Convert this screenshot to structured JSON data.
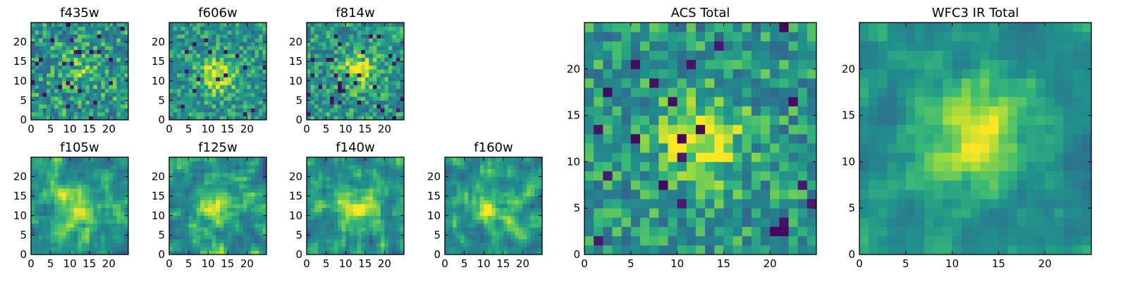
{
  "chart_data": [
    {
      "type": "heatmap",
      "title": "f435w",
      "xlim": [
        0,
        25
      ],
      "ylim": [
        0,
        25
      ],
      "xticks": [
        0,
        5,
        10,
        15,
        20
      ],
      "yticks": [
        0,
        5,
        10,
        15,
        20
      ],
      "seed": 11,
      "noise": 0.85,
      "smooth": 0,
      "peak": [
        12,
        13
      ],
      "peak_sigma": 3.5,
      "peak_amp": 0.35,
      "dark": 0.04,
      "colormap": "viridis"
    },
    {
      "type": "heatmap",
      "title": "f606w",
      "xlim": [
        0,
        25
      ],
      "ylim": [
        0,
        25
      ],
      "xticks": [
        0,
        5,
        10,
        15,
        20
      ],
      "yticks": [
        0,
        5,
        10,
        15,
        20
      ],
      "seed": 23,
      "noise": 0.7,
      "smooth": 0,
      "peak": [
        12,
        11
      ],
      "peak_sigma": 3.2,
      "peak_amp": 0.8,
      "dark": 0.03,
      "colormap": "viridis"
    },
    {
      "type": "heatmap",
      "title": "f814w",
      "xlim": [
        0,
        25
      ],
      "ylim": [
        0,
        25
      ],
      "xticks": [
        0,
        5,
        10,
        15,
        20
      ],
      "yticks": [
        0,
        5,
        10,
        15,
        20
      ],
      "seed": 37,
      "noise": 0.75,
      "smooth": 0,
      "peak": [
        13,
        12
      ],
      "peak_sigma": 3.0,
      "peak_amp": 0.8,
      "dark": 0.05,
      "colormap": "viridis"
    },
    {
      "type": "heatmap",
      "title": "f105w",
      "xlim": [
        0,
        25
      ],
      "ylim": [
        0,
        25
      ],
      "xticks": [
        0,
        5,
        10,
        15,
        20
      ],
      "yticks": [
        0,
        5,
        10,
        15,
        20
      ],
      "seed": 41,
      "noise": 0.8,
      "smooth": 1,
      "peak": [
        12,
        11
      ],
      "peak_sigma": 4.0,
      "peak_amp": 0.7,
      "dark": 0.0,
      "colormap": "viridis"
    },
    {
      "type": "heatmap",
      "title": "f125w",
      "xlim": [
        0,
        25
      ],
      "ylim": [
        0,
        25
      ],
      "xticks": [
        0,
        5,
        10,
        15,
        20
      ],
      "yticks": [
        0,
        5,
        10,
        15,
        20
      ],
      "seed": 53,
      "noise": 0.9,
      "smooth": 1,
      "peak": [
        12,
        11
      ],
      "peak_sigma": 4.0,
      "peak_amp": 0.55,
      "dark": 0.0,
      "colormap": "viridis"
    },
    {
      "type": "heatmap",
      "title": "f140w",
      "xlim": [
        0,
        25
      ],
      "ylim": [
        0,
        25
      ],
      "xticks": [
        0,
        5,
        10,
        15,
        20
      ],
      "yticks": [
        0,
        5,
        10,
        15,
        20
      ],
      "seed": 67,
      "noise": 0.85,
      "smooth": 1,
      "peak": [
        13,
        12
      ],
      "peak_sigma": 3.8,
      "peak_amp": 0.6,
      "dark": 0.0,
      "colormap": "viridis"
    },
    {
      "type": "heatmap",
      "title": "f160w",
      "xlim": [
        0,
        25
      ],
      "ylim": [
        0,
        25
      ],
      "xticks": [
        0,
        5,
        10,
        15,
        20
      ],
      "yticks": [
        0,
        5,
        10,
        15,
        20
      ],
      "seed": 79,
      "noise": 0.85,
      "smooth": 1,
      "peak": [
        11,
        11
      ],
      "peak_sigma": 3.5,
      "peak_amp": 0.65,
      "dark": 0.0,
      "colormap": "viridis"
    },
    {
      "type": "heatmap",
      "title": "ACS Total",
      "xlim": [
        0,
        25
      ],
      "ylim": [
        0,
        25
      ],
      "xticks": [
        0,
        5,
        10,
        15,
        20
      ],
      "yticks": [
        0,
        5,
        10,
        15,
        20
      ],
      "seed": 97,
      "noise": 0.75,
      "smooth": 0,
      "peak": [
        12,
        12
      ],
      "peak_sigma": 3.2,
      "peak_amp": 0.85,
      "dark": 0.04,
      "colormap": "viridis"
    },
    {
      "type": "heatmap",
      "title": "WFC3 IR Total",
      "xlim": [
        0,
        25
      ],
      "ylim": [
        0,
        25
      ],
      "xticks": [
        0,
        5,
        10,
        15,
        20
      ],
      "yticks": [
        0,
        5,
        10,
        15,
        20
      ],
      "seed": 113,
      "noise": 0.55,
      "smooth": 1,
      "peak": [
        12,
        12
      ],
      "peak_sigma": 3.5,
      "peak_amp": 0.9,
      "dark": 0.0,
      "colormap": "viridis"
    }
  ]
}
